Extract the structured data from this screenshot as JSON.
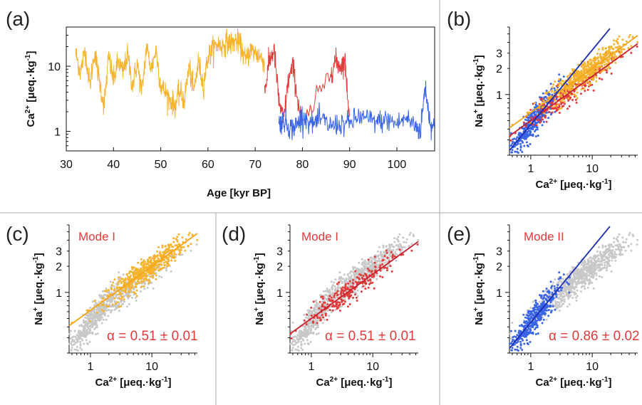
{
  "figure": {
    "colors": {
      "orange": "#F5B32E",
      "red": "#E03C3C",
      "blue": "#3A64E6",
      "grey": "#C8C8C8",
      "fit_orange": "#F2A516",
      "fit_red": "#C8202E",
      "fit_blue": "#1A2DAE",
      "annotation": "#E23A3A",
      "divider": "#AAAAAA"
    },
    "panels": [
      {
        "id": "a",
        "label": "(a)",
        "type": "line",
        "x_label": "Age [kyr BP]",
        "y_label": {
          "base": "Ca",
          "sup": "2+",
          "unit": " [μeq.·kg",
          "unit_sup": "-1",
          "close": "]"
        },
        "x_ticks": [
          "30",
          "40",
          "50",
          "60",
          "70",
          "80",
          "90",
          "100"
        ],
        "y_ticks": [
          "10",
          "1"
        ]
      },
      {
        "id": "b",
        "label": "(b)",
        "type": "scatter",
        "x_label": {
          "base": "Ca",
          "sup": "2+",
          "unit": " [μeq.·kg",
          "unit_sup": "-1",
          "close": "]"
        },
        "y_label": {
          "base": "Na",
          "sup": "+",
          "unit": " [μeq.·kg",
          "unit_sup": "-1",
          "close": "]"
        },
        "x_ticks": [
          "1",
          "10"
        ],
        "y_ticks": [
          "3",
          "2",
          "1"
        ]
      },
      {
        "id": "c",
        "label": "(c)",
        "type": "scatter",
        "mode": "Mode I",
        "alpha": "α = 0.51 ± 0.01",
        "x_label": {
          "base": "Ca",
          "sup": "2+",
          "unit": " [μeq.·kg",
          "unit_sup": "-1",
          "close": "]"
        },
        "y_label": {
          "base": "Na",
          "sup": "+",
          "unit": " [μeq.·kg",
          "unit_sup": "-1",
          "close": "]"
        },
        "x_ticks": [
          "1",
          "10"
        ],
        "y_ticks": [
          "3",
          "2",
          "1"
        ]
      },
      {
        "id": "d",
        "label": "(d)",
        "type": "scatter",
        "mode": "Mode I",
        "alpha": "α = 0.51 ± 0.01",
        "x_label": {
          "base": "Ca",
          "sup": "2+",
          "unit": " [μeq.·kg",
          "unit_sup": "-1",
          "close": "]"
        },
        "y_label": {
          "base": "Na",
          "sup": "+",
          "unit": " [μeq.·kg",
          "unit_sup": "-1",
          "close": "]"
        },
        "x_ticks": [
          "1",
          "10"
        ],
        "y_ticks": [
          "3",
          "2",
          "1"
        ]
      },
      {
        "id": "e",
        "label": "(e)",
        "type": "scatter",
        "mode": "Mode II",
        "alpha": "α = 0.86 ± 0.02",
        "x_label": {
          "base": "Ca",
          "sup": "2+",
          "unit": " [μeq.·kg",
          "unit_sup": "-1",
          "close": "]"
        },
        "y_label": {
          "base": "Na",
          "sup": "+",
          "unit": " [μeq.·kg",
          "unit_sup": "-1",
          "close": "]"
        },
        "x_ticks": [
          "1",
          "10"
        ],
        "y_ticks": [
          "3",
          "2",
          "1"
        ]
      }
    ]
  },
  "chart_data": [
    {
      "panel": "a",
      "type": "line",
      "xlabel": "Age [kyr BP]",
      "ylabel": "Ca2+ [μeq.·kg-1]",
      "xlim": [
        30,
        108
      ],
      "ylim": [
        0.5,
        40
      ],
      "yscale": "log",
      "series": [
        {
          "color": "orange",
          "x": [
            32,
            33,
            34,
            35,
            36,
            37,
            38,
            39,
            40,
            41,
            42,
            43,
            44,
            45,
            46,
            47,
            48,
            49,
            50,
            51,
            52,
            53,
            54,
            55,
            56,
            57,
            58,
            59,
            60,
            61,
            62,
            63,
            64,
            65,
            66,
            67,
            68,
            69,
            70,
            71,
            72
          ],
          "y": [
            16,
            8,
            18,
            5,
            17,
            6,
            2.5,
            14,
            6,
            12,
            8,
            15,
            5,
            11,
            4,
            20,
            9,
            18,
            5,
            4,
            3,
            2.5,
            4,
            3,
            10,
            4,
            12,
            5,
            14,
            18,
            22,
            20,
            24,
            22,
            25,
            20,
            12,
            18,
            16,
            14,
            12
          ]
        },
        {
          "color": "red",
          "x": [
            72,
            73,
            74,
            75,
            76,
            77,
            78,
            79,
            80,
            86,
            87,
            88,
            89,
            90
          ],
          "y": [
            4,
            12,
            18,
            3,
            1.4,
            6,
            10,
            3,
            1.2,
            8,
            12,
            10,
            12,
            1.5
          ]
        },
        {
          "color": "blue",
          "x": [
            75,
            76,
            77,
            78,
            79,
            80,
            82,
            84,
            86,
            88,
            90,
            92,
            94,
            96,
            98,
            100,
            102,
            104,
            105,
            106,
            107,
            108
          ],
          "y": [
            1.3,
            1.5,
            1.2,
            1.1,
            1.3,
            1.8,
            1.3,
            1.5,
            1.2,
            1.3,
            1.3,
            1.7,
            1.5,
            1.4,
            1.5,
            1.3,
            1.6,
            1.2,
            1.0,
            5,
            1.4,
            1.1
          ]
        }
      ]
    },
    {
      "panel": "b",
      "type": "scatter",
      "xscale": "log",
      "yscale": "log",
      "xlim": [
        0.45,
        55
      ],
      "ylim": [
        0.2,
        6
      ],
      "fits": [
        {
          "color": "orange",
          "alpha": 0.51,
          "intercept": 0.62
        },
        {
          "color": "red",
          "alpha": 0.51,
          "intercept": 0.5
        },
        {
          "color": "blue",
          "alpha": 0.86,
          "intercept": 0.45
        }
      ]
    },
    {
      "panel": "c",
      "type": "scatter",
      "highlight": "orange",
      "alpha": 0.51,
      "alpha_err": 0.01,
      "xscale": "log",
      "yscale": "log"
    },
    {
      "panel": "d",
      "type": "scatter",
      "highlight": "red",
      "alpha": 0.51,
      "alpha_err": 0.01,
      "xscale": "log",
      "yscale": "log"
    },
    {
      "panel": "e",
      "type": "scatter",
      "highlight": "blue",
      "alpha": 0.86,
      "alpha_err": 0.02,
      "xscale": "log",
      "yscale": "log"
    }
  ]
}
